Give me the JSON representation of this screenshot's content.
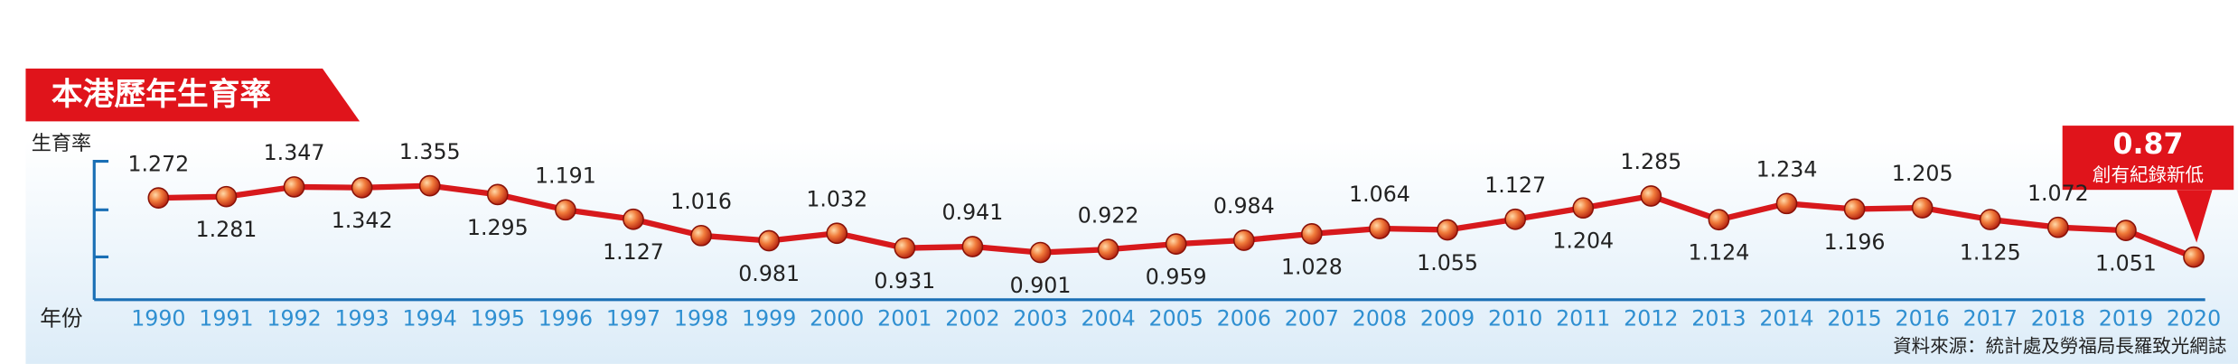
{
  "chart_data": {
    "type": "line",
    "title": "本港歷年生育率",
    "y_label": "生育率",
    "x_label": "年份",
    "source": "資料來源：統計處及勞福局長羅致光網誌",
    "annotation": "創有紀錄新低",
    "categories": [
      "1990",
      "1991",
      "1992",
      "1993",
      "1994",
      "1995",
      "1996",
      "1997",
      "1998",
      "1999",
      "2000",
      "2001",
      "2002",
      "2003",
      "2004",
      "2005",
      "2006",
      "2007",
      "2008",
      "2009",
      "2010",
      "2011",
      "2012",
      "2013",
      "2014",
      "2015",
      "2016",
      "2017",
      "2018",
      "2019",
      "2020"
    ],
    "values": [
      1.272,
      1.281,
      1.347,
      1.342,
      1.355,
      1.295,
      1.191,
      1.127,
      1.016,
      0.981,
      1.032,
      0.931,
      0.941,
      0.901,
      0.922,
      0.959,
      0.984,
      1.028,
      1.064,
      1.055,
      1.127,
      1.204,
      1.285,
      1.124,
      1.234,
      1.196,
      1.205,
      1.125,
      1.072,
      1.051,
      0.87
    ],
    "color": "#d7191c",
    "ylim": [
      0.58,
      1.55
    ]
  }
}
